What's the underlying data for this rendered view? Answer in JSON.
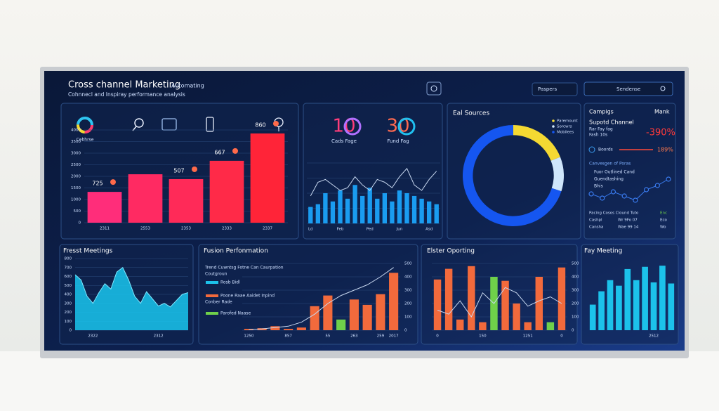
{
  "header": {
    "title": "Cross channel Marketing",
    "tag": "Automating",
    "subtitle": "Cohnnecl and Inspiray performance analysis",
    "dropdown": "Paspers",
    "search": "Sendense"
  },
  "icon_caption": "Cebhrse",
  "kpis": [
    {
      "value": "10",
      "label": "Cads Fage"
    },
    {
      "value": "30",
      "label": "Fund Fag"
    }
  ],
  "chart_data": [
    {
      "type": "bar",
      "categories": [
        "2311",
        "2553",
        "2353",
        "2333",
        "2337"
      ],
      "series": [
        {
          "values": [
            1330,
            2090,
            1880,
            2670,
            3850
          ],
          "colors": [
            "#ff2d7a",
            "#ff2a62",
            "#ff2a58",
            "#ff2a48",
            "#ff2438"
          ]
        }
      ],
      "annotations": [
        "725",
        null,
        "507",
        "667",
        "860"
      ],
      "ylim": [
        0,
        4000
      ],
      "yticks": [
        0,
        500,
        1000,
        1500,
        2000,
        2500,
        3000,
        3500,
        4000
      ],
      "grid": true
    },
    {
      "type": "bar",
      "categories": [
        "Ld",
        null,
        null,
        null,
        "Feb",
        null,
        null,
        null,
        "Ped",
        null,
        null,
        null,
        "Jun",
        null,
        null,
        null,
        "Asd",
        null
      ],
      "series": [
        {
          "values": [
            30,
            35,
            55,
            40,
            60,
            45,
            70,
            50,
            65,
            45,
            55,
            40,
            60,
            55,
            50,
            45,
            40,
            35
          ],
          "color": "#1a9cf0"
        },
        {
          "type": "line",
          "values": [
            50,
            75,
            80,
            70,
            60,
            65,
            85,
            70,
            60,
            80,
            75,
            65,
            85,
            100,
            70,
            60,
            80,
            95
          ],
          "color": "#c8d8f0"
        }
      ],
      "ylim": [
        0,
        110
      ],
      "grid": true
    },
    {
      "type": "pie",
      "title": "Eal Sources",
      "categories": [
        "Paremount",
        "Sorcwrs",
        "Mobilees"
      ],
      "values": [
        19,
        11,
        70
      ],
      "colors": [
        "#f4d932",
        "#cfe6fb",
        "#1556f0"
      ]
    },
    {
      "type": "line",
      "series": [
        {
          "values": [
            40,
            30,
            45,
            35,
            25,
            50,
            60,
            75
          ],
          "color": "#3a7cf0"
        }
      ],
      "ylim": [
        0,
        100
      ]
    },
    {
      "type": "area",
      "title": "Fresst Meetings",
      "categories": [
        null,
        null,
        null,
        "2322",
        null,
        null,
        null,
        null,
        null,
        null,
        null,
        null,
        null,
        null,
        "2312",
        null,
        null,
        null,
        null,
        null
      ],
      "series": [
        {
          "values": [
            620,
            560,
            380,
            300,
            420,
            520,
            460,
            650,
            700,
            560,
            380,
            300,
            430,
            350,
            270,
            300,
            260,
            330,
            400,
            420
          ],
          "color": "#19c6ee"
        }
      ],
      "ylim": [
        0,
        800
      ],
      "yticks": [
        0,
        100,
        200,
        300,
        400,
        500,
        600,
        700,
        800
      ],
      "grid": true
    },
    {
      "type": "bar",
      "title": "Fusion Perfonmation",
      "categories": [
        "1250",
        null,
        null,
        "857",
        null,
        null,
        "55",
        null,
        "263",
        null,
        "259",
        "2017"
      ],
      "series": [
        {
          "values": [
            10,
            15,
            30,
            10,
            20,
            180,
            260,
            80,
            230,
            190,
            270,
            430
          ],
          "colors": [
            "#f26a3c",
            "#f26a3c",
            "#f26a3c",
            "#f26a3c",
            "#f26a3c",
            "#f26a3c",
            "#f26a3c",
            "#6fd04a",
            "#f26a3c",
            "#f26a3c",
            "#f26a3c",
            "#f26a3c"
          ]
        },
        {
          "type": "line",
          "values": [
            5,
            10,
            20,
            30,
            60,
            120,
            200,
            260,
            300,
            340,
            400,
            470
          ],
          "color": "#c8d8f0"
        }
      ],
      "ylim": [
        0,
        500
      ],
      "yticks": [
        0,
        100,
        200,
        300,
        400,
        500
      ],
      "ytick_side": "right",
      "grid": true
    },
    {
      "type": "bar",
      "title": "Elster Oporting",
      "categories": [
        "0",
        null,
        null,
        null,
        "150",
        null,
        null,
        null,
        "1251",
        null,
        null,
        "0"
      ],
      "series": [
        {
          "values": [
            380,
            460,
            80,
            480,
            60,
            400,
            370,
            200,
            60,
            400,
            60,
            470
          ],
          "colors": [
            "#f26a3c",
            "#f26a3c",
            "#f26a3c",
            "#f26a3c",
            "#f26a3c",
            "#6fd04a",
            "#f26a3c",
            "#f26a3c",
            "#f26a3c",
            "#f26a3c",
            "#6fd04a",
            "#f26a3c"
          ]
        },
        {
          "type": "line",
          "values": [
            150,
            120,
            220,
            100,
            280,
            200,
            320,
            280,
            180,
            220,
            250,
            200
          ],
          "color": "#c8d8f0"
        }
      ],
      "ylim": [
        0,
        500
      ],
      "yticks": [
        0,
        100,
        200,
        300,
        400,
        500
      ],
      "ytick_side": "right",
      "grid": true
    },
    {
      "type": "bar",
      "title": "Fay Meeting",
      "categories": [
        null,
        null,
        null,
        null,
        null,
        null,
        null,
        "2512",
        null,
        null
      ],
      "series": [
        {
          "values": [
            230,
            350,
            450,
            400,
            550,
            450,
            570,
            430,
            580,
            420
          ],
          "color": "#1cc2ea"
        }
      ],
      "ylim": [
        0,
        600
      ]
    }
  ],
  "side_panel": {
    "title": "Campigs",
    "action": "Mank",
    "heading": "Supotd Channel",
    "lines": [
      "Rar Fay fag",
      "Fash 10s"
    ],
    "change": "-390%",
    "meter_label": "Boords",
    "meter_value": "189%",
    "section": "Canvesgen of Poras",
    "items": [
      "Fuor Outlined Cand",
      "Guendtashing",
      "Bhis"
    ],
    "table": [
      [
        "Pacing Cosos Clound Tuto",
        "Enc"
      ],
      [
        "Cashpl",
        "Wr 9Fo 07",
        "Eco"
      ],
      [
        "Cansha",
        "Wae 99 14",
        "Wo"
      ]
    ]
  },
  "fusion_legend": {
    "heading": "Trend Cuwntsg Fotne Can Caurpation",
    "sub": "Coutgroun",
    "items": [
      "Rosb Bidl",
      "Poone Raae Aaidet Inpind",
      "Conber Rade",
      "Parofed Naase"
    ]
  }
}
